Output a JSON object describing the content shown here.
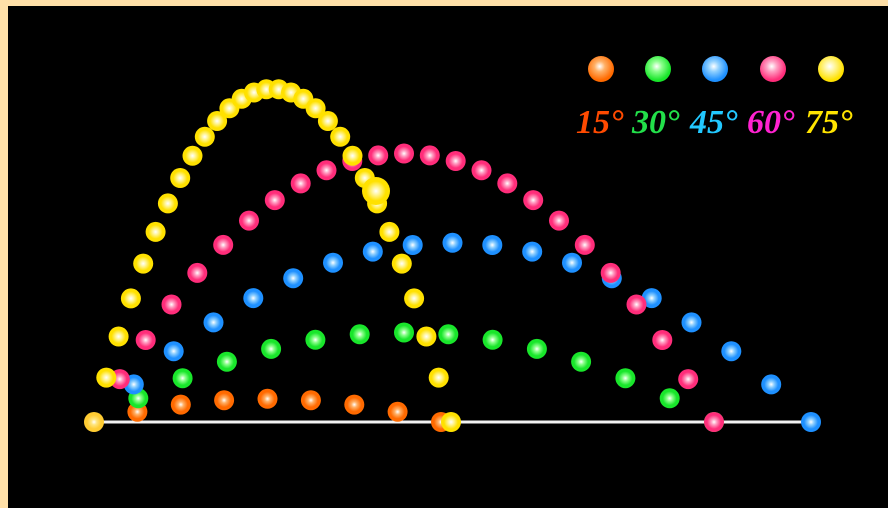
{
  "colors": {
    "background": "#000000",
    "frame": "#ffe0a8",
    "ground": "#f2f2f2",
    "launch_point": "#ffcc33"
  },
  "trajectories": [
    {
      "angle_label": "15°",
      "color": "#ff6a00",
      "glow": "#ffb066"
    },
    {
      "angle_label": "30°",
      "color": "#19e62b",
      "glow": "#8cff8c"
    },
    {
      "angle_label": "45°",
      "color": "#1e90ff",
      "glow": "#8fd0ff"
    },
    {
      "angle_label": "60°",
      "color": "#ff2d7a",
      "glow": "#ff9ec2"
    },
    {
      "angle_label": "75°",
      "color": "#ffe100",
      "glow": "#fff59a"
    }
  ],
  "legend": {
    "items": [
      {
        "label": "15°",
        "color": "#ff6a00",
        "text_color": "#ff4a00"
      },
      {
        "label": "30°",
        "color": "#19e62b",
        "text_color": "#22e04a"
      },
      {
        "label": "45°",
        "color": "#1e90ff",
        "text_color": "#22c8ff"
      },
      {
        "label": "60°",
        "color": "#ff2d7a",
        "text_color": "#ff22d0"
      },
      {
        "label": "75°",
        "color": "#ffe100",
        "text_color": "#ffe400"
      }
    ]
  }
}
